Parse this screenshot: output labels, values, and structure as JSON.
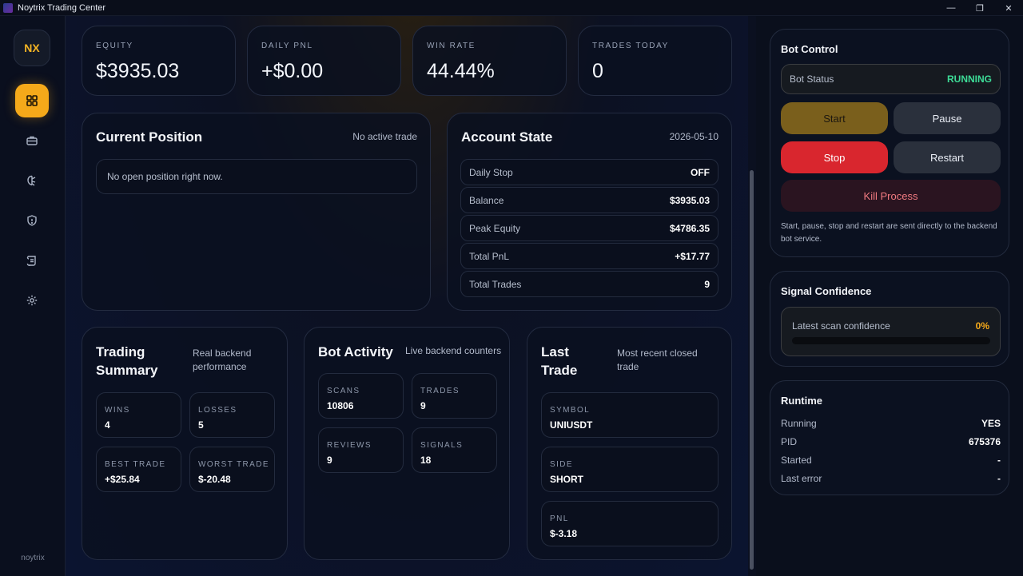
{
  "window": {
    "title": "Noytrix Trading Center",
    "controls": [
      "—",
      "❐",
      "✕"
    ]
  },
  "sidebar": {
    "logo": "NX",
    "footer": "noytrix",
    "items": [
      {
        "icon": "dashboard-icon",
        "active": true
      },
      {
        "icon": "briefcase-icon",
        "active": false
      },
      {
        "icon": "brain-icon",
        "active": false
      },
      {
        "icon": "shield-icon",
        "active": false
      },
      {
        "icon": "scroll-icon",
        "active": false
      },
      {
        "icon": "gear-icon",
        "active": false
      }
    ]
  },
  "kpis": [
    {
      "label": "EQUITY",
      "value": "$3935.03"
    },
    {
      "label": "DAILY PNL",
      "value": "+$0.00"
    },
    {
      "label": "WIN RATE",
      "value": "44.44%"
    },
    {
      "label": "TRADES TODAY",
      "value": "0"
    }
  ],
  "position": {
    "title": "Current Position",
    "status": "No active trade",
    "message": "No open position right now."
  },
  "account": {
    "title": "Account State",
    "date": "2026-05-10",
    "rows": [
      {
        "key": "Daily Stop",
        "value": "OFF"
      },
      {
        "key": "Balance",
        "value": "$3935.03"
      },
      {
        "key": "Peak Equity",
        "value": "$4786.35"
      },
      {
        "key": "Total PnL",
        "value": "+$17.77"
      },
      {
        "key": "Total Trades",
        "value": "9"
      }
    ]
  },
  "summary": {
    "title_line1": "Trading",
    "title_line2": "Summary",
    "sub_line1": "Real backend",
    "sub_line2": "performance",
    "tiles": [
      {
        "label": "WINS",
        "value": "4"
      },
      {
        "label": "LOSSES",
        "value": "5"
      },
      {
        "label": "BEST TRADE",
        "value": "+$25.84"
      },
      {
        "label": "WORST TRADE",
        "value": "$-20.48"
      }
    ]
  },
  "activity": {
    "title": "Bot Activity",
    "sub": "Live backend counters",
    "tiles": [
      {
        "label": "SCANS",
        "value": "10806"
      },
      {
        "label": "TRADES",
        "value": "9"
      },
      {
        "label": "REVIEWS",
        "value": "9"
      },
      {
        "label": "SIGNALS",
        "value": "18"
      }
    ]
  },
  "last_trade": {
    "title_line1": "Last",
    "title_line2": "Trade",
    "sub_line1": "Most recent closed",
    "sub_line2": "trade",
    "tiles": [
      {
        "label": "SYMBOL",
        "value": "UNIUSDT"
      },
      {
        "label": "SIDE",
        "value": "SHORT"
      },
      {
        "label": "PNL",
        "value": "$-3.18"
      }
    ]
  },
  "bot_control": {
    "title": "Bot Control",
    "status_label": "Bot Status",
    "status_value": "RUNNING",
    "start": "Start",
    "pause": "Pause",
    "stop": "Stop",
    "restart": "Restart",
    "kill": "Kill Process",
    "note_line1": "Start, pause, stop and restart are sent directly to the backend",
    "note_line2": "bot service."
  },
  "signal": {
    "title": "Signal Confidence",
    "label": "Latest scan confidence",
    "value": "0%",
    "progress": 0
  },
  "runtime": {
    "title": "Runtime",
    "rows": [
      {
        "key": "Running",
        "value": "YES"
      },
      {
        "key": "PID",
        "value": "675376"
      },
      {
        "key": "Started",
        "value": "-"
      },
      {
        "key": "Last error",
        "value": "-"
      }
    ]
  },
  "colors": {
    "accent": "#f5a91a",
    "running": "#3ddc97",
    "stop": "#d9262e",
    "kill_text": "#f07a80",
    "confidence": "#f5a91a"
  }
}
